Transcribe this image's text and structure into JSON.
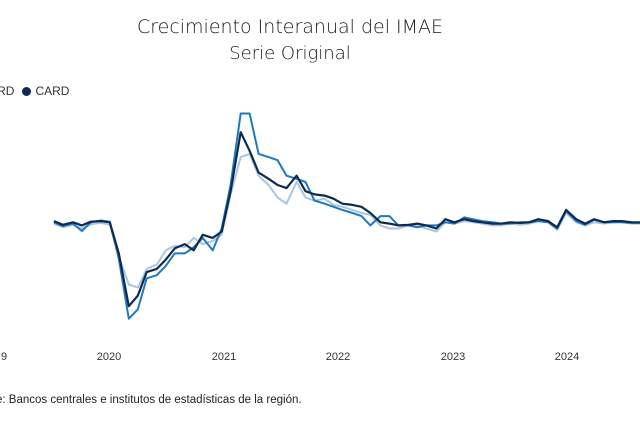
{
  "chart_data": {
    "type": "line",
    "title": "Crecimiento Interanual del IMAE",
    "subtitle": "Serie Original",
    "legend": {
      "position": "top-left",
      "labels": [
        "PARD",
        "CARD"
      ]
    },
    "colors": {
      "CARD": "#0e2a4c",
      "light": "#a9c6e2",
      "mid": "#1f79c0"
    },
    "x_ticks": [
      "9",
      "2020",
      "2021",
      "2022",
      "2023",
      "2024"
    ],
    "grid": false,
    "series": [
      {
        "name": "CARD",
        "x": [
          2019.5,
          2019.58,
          2019.67,
          2019.75,
          2019.83,
          2019.92,
          2020.0,
          2020.08,
          2020.17,
          2020.25,
          2020.33,
          2020.42,
          2020.5,
          2020.58,
          2020.67,
          2020.75,
          2020.83,
          2020.92,
          2021.0,
          2021.08,
          2021.17,
          2021.25,
          2021.33,
          2021.42,
          2021.5,
          2021.58,
          2021.67,
          2021.75,
          2021.83,
          2021.92,
          2022.0,
          2022.08,
          2022.17,
          2022.25,
          2022.33,
          2022.42,
          2022.5,
          2022.58,
          2022.67,
          2022.75,
          2022.83,
          2022.92,
          2023.0,
          2023.08,
          2023.17,
          2023.25,
          2023.33,
          2023.42,
          2023.5,
          2023.58,
          2023.67,
          2023.75,
          2023.83,
          2023.92,
          2024.0,
          2024.08,
          2024.17,
          2024.25,
          2024.33,
          2024.42,
          2024.5,
          2024.58,
          2024.67,
          2024.75
        ],
        "values": [
          3.2,
          2.6,
          3.0,
          2.5,
          3.1,
          3.2,
          3.0,
          -2.0,
          -10.5,
          -8.8,
          -5.0,
          -4.5,
          -3.0,
          -1.2,
          -0.5,
          -1.5,
          1.0,
          0.5,
          1.5,
          8.0,
          17.5,
          14.5,
          11.0,
          10.0,
          9.0,
          8.5,
          10.5,
          8.0,
          7.5,
          7.3,
          6.8,
          6.0,
          5.8,
          5.5,
          4.5,
          3.0,
          2.8,
          2.5,
          2.6,
          2.8,
          2.5,
          2.0,
          3.5,
          3.0,
          3.5,
          3.2,
          3.0,
          2.8,
          2.8,
          3.0,
          2.9,
          3.0,
          3.5,
          3.2,
          2.2,
          5.0,
          3.5,
          2.8,
          3.5,
          3.0,
          3.2,
          3.2,
          3.0,
          3.0
        ]
      },
      {
        "name": "",
        "x": [
          2019.5,
          2019.58,
          2019.67,
          2019.75,
          2019.83,
          2019.92,
          2020.0,
          2020.08,
          2020.17,
          2020.25,
          2020.33,
          2020.42,
          2020.5,
          2020.58,
          2020.67,
          2020.75,
          2020.83,
          2020.92,
          2021.0,
          2021.08,
          2021.17,
          2021.25,
          2021.33,
          2021.42,
          2021.5,
          2021.58,
          2021.67,
          2021.75,
          2021.83,
          2021.92,
          2022.0,
          2022.08,
          2022.17,
          2022.25,
          2022.33,
          2022.42,
          2022.5,
          2022.58,
          2022.67,
          2022.75,
          2022.83,
          2022.92,
          2023.0,
          2023.08,
          2023.17,
          2023.25,
          2023.33,
          2023.42,
          2023.5,
          2023.58,
          2023.67,
          2023.75,
          2023.83,
          2023.92,
          2024.0,
          2024.08,
          2024.17,
          2024.25,
          2024.33,
          2024.42,
          2024.5,
          2024.58,
          2024.67,
          2024.75
        ],
        "values": [
          2.8,
          2.2,
          2.6,
          2.0,
          2.7,
          2.9,
          2.6,
          -2.5,
          -7.0,
          -7.5,
          -4.5,
          -3.8,
          -1.5,
          -0.8,
          -1.0,
          0.5,
          -0.5,
          0.0,
          1.0,
          7.5,
          13.5,
          14.0,
          10.5,
          9.0,
          7.0,
          6.0,
          9.5,
          7.0,
          6.5,
          6.8,
          5.8,
          5.5,
          5.0,
          4.5,
          4.2,
          2.5,
          2.0,
          2.0,
          2.5,
          2.5,
          2.0,
          1.5,
          3.0,
          2.8,
          3.2,
          3.0,
          2.8,
          2.5,
          2.5,
          2.8,
          2.6,
          2.8,
          3.2,
          3.0,
          1.8,
          4.5,
          3.0,
          2.5,
          3.0,
          2.8,
          3.0,
          3.0,
          2.8,
          2.8
        ]
      },
      {
        "name": "",
        "x": [
          2019.5,
          2019.58,
          2019.67,
          2019.75,
          2019.83,
          2019.92,
          2020.0,
          2020.08,
          2020.17,
          2020.25,
          2020.33,
          2020.42,
          2020.5,
          2020.58,
          2020.67,
          2020.75,
          2020.83,
          2020.92,
          2021.0,
          2021.08,
          2021.17,
          2021.25,
          2021.33,
          2021.42,
          2021.5,
          2021.58,
          2021.67,
          2021.75,
          2021.83,
          2021.92,
          2022.0,
          2022.08,
          2022.17,
          2022.25,
          2022.33,
          2022.42,
          2022.5,
          2022.58,
          2022.67,
          2022.75,
          2022.83,
          2022.92,
          2023.0,
          2023.08,
          2023.17,
          2023.25,
          2023.33,
          2023.42,
          2023.5,
          2023.58,
          2023.67,
          2023.75,
          2023.83,
          2023.92,
          2024.0,
          2024.08,
          2024.17,
          2024.25,
          2024.33,
          2024.42,
          2024.5,
          2024.58,
          2024.67,
          2024.75
        ],
        "values": [
          3.0,
          2.4,
          2.8,
          1.6,
          3.0,
          3.3,
          3.1,
          -2.8,
          -12.5,
          -11.0,
          -6.0,
          -5.5,
          -4.0,
          -2.0,
          -2.0,
          -1.0,
          0.5,
          -1.5,
          2.0,
          9.0,
          20.5,
          20.5,
          14.0,
          13.5,
          13.0,
          10.5,
          10.0,
          9.5,
          6.5,
          6.0,
          5.5,
          5.0,
          4.5,
          4.0,
          2.5,
          4.0,
          4.0,
          2.5,
          2.5,
          2.2,
          2.5,
          2.5,
          3.0,
          2.8,
          3.8,
          3.5,
          3.2,
          3.0,
          2.8,
          2.8,
          3.0,
          3.0,
          3.2,
          3.0,
          2.0,
          4.8,
          3.2,
          2.6,
          3.4,
          3.0,
          3.0,
          3.0,
          2.9,
          2.9
        ]
      }
    ],
    "ylim": [
      -14,
      23
    ]
  },
  "source": "e: Bancos centrales e institutos de estadísticas de la región."
}
